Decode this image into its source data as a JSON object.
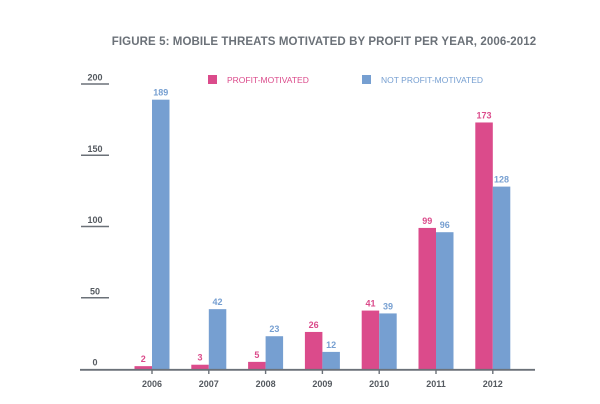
{
  "chart_data": {
    "type": "bar",
    "title": "FIGURE 5: MOBILE THREATS MOTIVATED BY PROFIT PER YEAR, 2006-2012",
    "xlabel": "",
    "ylabel": "",
    "categories": [
      "2006",
      "2007",
      "2008",
      "2009",
      "2010",
      "2011",
      "2012"
    ],
    "series": [
      {
        "name": "PROFIT-MOTIVATED",
        "color": "#db4b8b",
        "values": [
          2,
          3,
          5,
          26,
          41,
          99,
          173
        ]
      },
      {
        "name": "NOT PROFIT-MOTIVATED",
        "color": "#769fd1",
        "values": [
          189,
          42,
          23,
          12,
          39,
          96,
          128
        ]
      }
    ],
    "ylim": [
      0,
      200
    ],
    "yticks": [
      0,
      50,
      100,
      150,
      200
    ],
    "ytick_labels": [
      "0",
      "50",
      "100",
      "150",
      "200"
    ],
    "grid": false,
    "data_labels": true,
    "legend_position": "top"
  },
  "colors": {
    "axis": "#6b7178",
    "text": "#555a60"
  }
}
